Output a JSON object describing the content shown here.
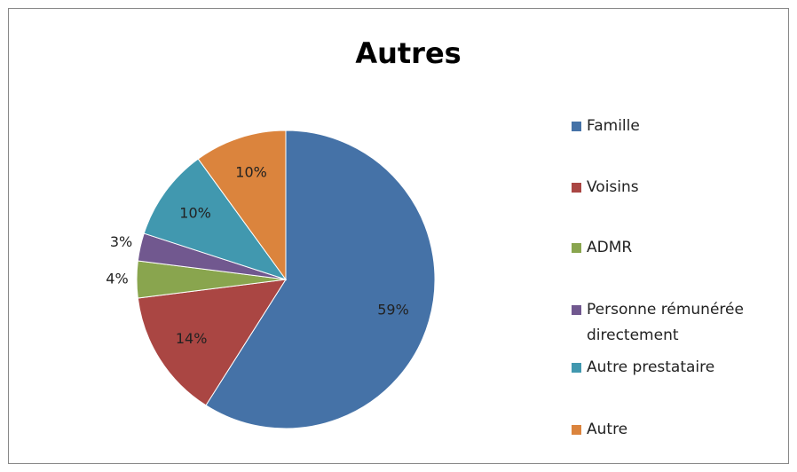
{
  "chart_data": {
    "type": "pie",
    "title": "Autres",
    "categories": [
      "Famille",
      "Voisins",
      "ADMR",
      "Personne rémunérée directement",
      "Autre prestataire",
      "Autre"
    ],
    "values": [
      59,
      14,
      4,
      3,
      10,
      10
    ],
    "value_labels": [
      "59%",
      "14%",
      "4%",
      "3%",
      "10%",
      "10%"
    ],
    "colors": [
      "#4572a7",
      "#aa4643",
      "#89a54e",
      "#71588f",
      "#4198af",
      "#db843d"
    ],
    "legend": "right"
  }
}
